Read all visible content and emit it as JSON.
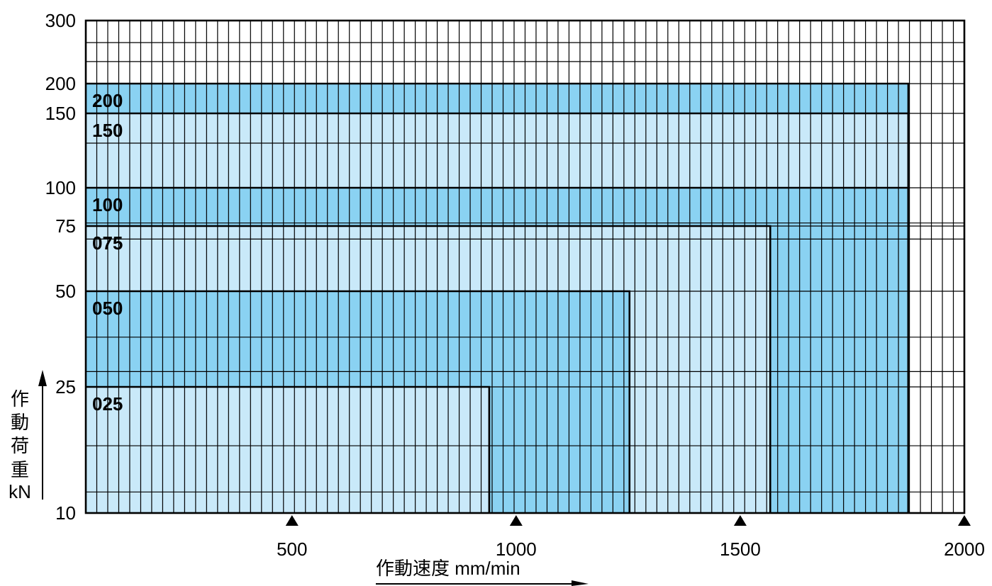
{
  "chart_data": {
    "type": "area",
    "x_axis": {
      "label": "作動速度 mm/min",
      "ticks": [
        500,
        1000,
        1500,
        2000
      ],
      "tick_labels": [
        "500",
        "1000",
        "1500",
        "2000"
      ],
      "range": [
        40,
        2000
      ]
    },
    "y_axis": {
      "label_chars": [
        "作",
        "動",
        "荷",
        "重",
        "kN"
      ],
      "ticks": [
        10,
        25,
        50,
        75,
        100,
        150,
        200,
        300
      ],
      "tick_labels": [
        "10",
        "25",
        "50",
        "75",
        "100",
        "150",
        "200",
        "300"
      ],
      "range": [
        10,
        300
      ],
      "scale": "custom-nonlinear"
    },
    "grid": true,
    "series": [
      {
        "name": "025",
        "max_speed": 940,
        "max_load": 25
      },
      {
        "name": "050",
        "max_speed": 1253,
        "max_load": 50
      },
      {
        "name": "075",
        "max_speed": 1567,
        "max_load": 75
      },
      {
        "name": "100",
        "max_speed": 1875,
        "max_load": 100
      },
      {
        "name": "150",
        "max_speed": 1875,
        "max_load": 150
      },
      {
        "name": "200",
        "max_speed": 1875,
        "max_load": 200
      }
    ],
    "colors": {
      "light": "#c9e9f9",
      "dark": "#8ad2f2",
      "grid": "#000000"
    }
  }
}
